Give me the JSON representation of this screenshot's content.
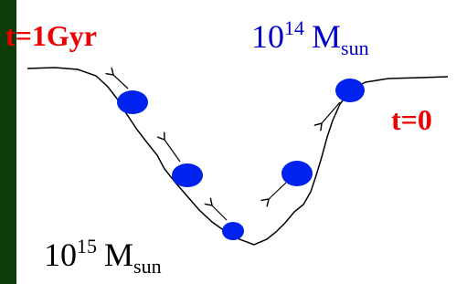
{
  "labels": {
    "time_start": "t=1Gyr",
    "time_end": "t=0",
    "mass_small": {
      "base": "10",
      "exponent": "14",
      "symbol": "M",
      "subscript": "sun"
    },
    "mass_large": {
      "base": "10",
      "exponent": "15",
      "symbol": "M",
      "subscript": "sun"
    }
  }
}
